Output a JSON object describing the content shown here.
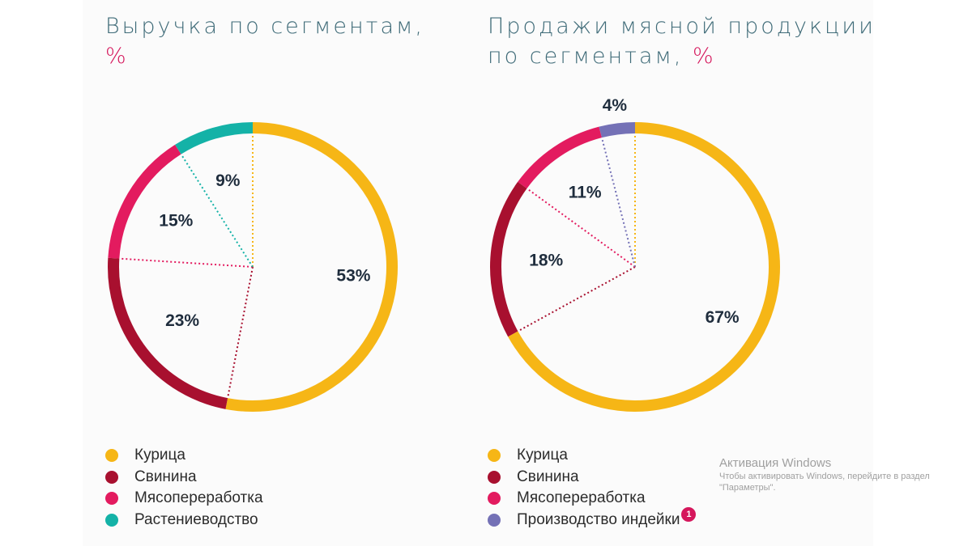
{
  "chart_data": [
    {
      "type": "pie",
      "title": "Выручка по сегментам,",
      "unit": "%",
      "categories": [
        "Курица",
        "Свинина",
        "Мясопереработка",
        "Растениеводство"
      ],
      "values": [
        53,
        23,
        15,
        9
      ],
      "value_labels": [
        "53%",
        "23%",
        "15%",
        "9%"
      ],
      "colors": [
        "#f6b616",
        "#a8102f",
        "#e31b5f",
        "#14b2a7"
      ],
      "legend_position": "bottom-left"
    },
    {
      "type": "pie",
      "title": "Продажи мясной продукции по сегментам,",
      "unit": "%",
      "categories": [
        "Курица",
        "Свинина",
        "Мясопереработка",
        "Производство индейки"
      ],
      "values": [
        67,
        18,
        11,
        4
      ],
      "value_labels": [
        "67%",
        "18%",
        "11%",
        "4%"
      ],
      "colors": [
        "#f6b616",
        "#a8102f",
        "#e31b5f",
        "#7471b6"
      ],
      "legend_position": "bottom-left",
      "note_badge": "1"
    }
  ],
  "watermark": {
    "title": "Активация Windows",
    "text": "Чтобы активировать Windows, перейдите в раздел \"Параметры\"."
  }
}
